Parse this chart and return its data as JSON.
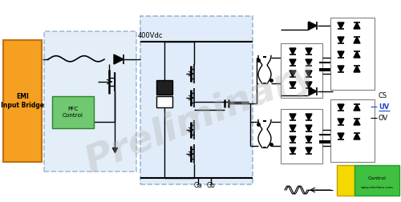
{
  "bg_color": "#ffffff",
  "emi_label": "EMI\nInput Bridge",
  "pfc_label": "PFC\nControl",
  "label_400vdc": "400Vdc",
  "ga_label": "Ga",
  "gb_label": "Gb",
  "cs_label": "CS",
  "uv_label": "UV",
  "ov_label": "OV",
  "watermark": "Preliminary",
  "watermark_color": "#b0b0b0",
  "watermark_alpha": 0.35,
  "website": "www.elecfans.com",
  "emi_color": "#f5a020",
  "pfc_bg_color": "#cce0f5",
  "llc_bg_color": "#cce0f5",
  "pfc_ctrl_color": "#70c870",
  "ctrl_yellow": "#f5d800",
  "ctrl_green": "#40c040"
}
